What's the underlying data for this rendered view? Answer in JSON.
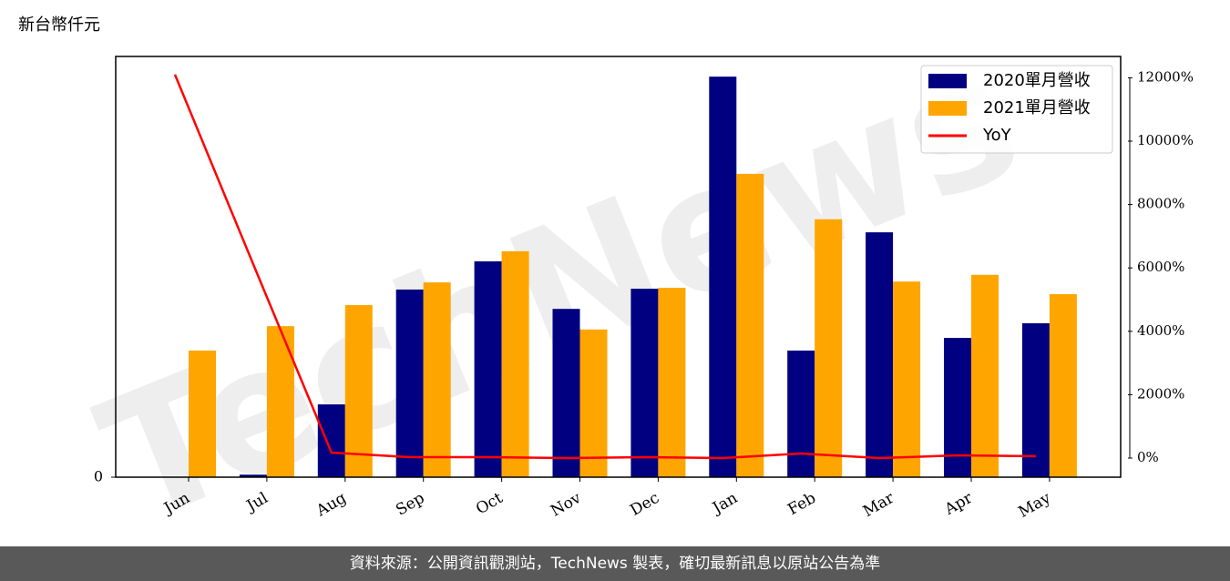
{
  "chart_data": {
    "type": "bar",
    "unit_label": "新台幣仟元",
    "watermark": "TechNews",
    "footer": "資料來源：公開資訊觀測站，TechNews 製表，確切最新訊息以原站公告為準",
    "categories": [
      "Jun",
      "Jul",
      "Aug",
      "Sep",
      "Oct",
      "Nov",
      "Dec",
      "Jan",
      "Feb",
      "Mar",
      "Apr",
      "May"
    ],
    "series": [
      {
        "name": "2020單月營收",
        "color": "#000080",
        "values": [
          0,
          0.6,
          17.3,
          44.6,
          51.3,
          40.0,
          44.8,
          95.2,
          30.1,
          58.2,
          33.1,
          36.6
        ]
      },
      {
        "name": "2021單月營收",
        "color": "#ffa500",
        "values": [
          30.1,
          35.9,
          40.9,
          46.3,
          53.7,
          35.1,
          45.0,
          72.1,
          61.3,
          46.5,
          48.1,
          43.5
        ]
      },
      {
        "name": "YoY",
        "color": "#ff0000",
        "type": "line",
        "axis": "y2",
        "values": [
          12100,
          6120,
          172,
          29,
          29,
          0,
          29,
          0,
          144,
          0,
          86,
          57
        ]
      }
    ],
    "ylim": [
      0,
      100
    ],
    "yticks": [
      0
    ],
    "y2lim": [
      -603,
      12672
    ],
    "y2ticks": [
      {
        "value": 0,
        "label": "0%"
      },
      {
        "value": 2000,
        "label": "2000%"
      },
      {
        "value": 4000,
        "label": "4000%"
      },
      {
        "value": 6000,
        "label": "6000%"
      },
      {
        "value": 8000,
        "label": "8000%"
      },
      {
        "value": 10000,
        "label": "10000%"
      },
      {
        "value": 12000,
        "label": "12000%"
      }
    ],
    "legend": "upper right"
  }
}
